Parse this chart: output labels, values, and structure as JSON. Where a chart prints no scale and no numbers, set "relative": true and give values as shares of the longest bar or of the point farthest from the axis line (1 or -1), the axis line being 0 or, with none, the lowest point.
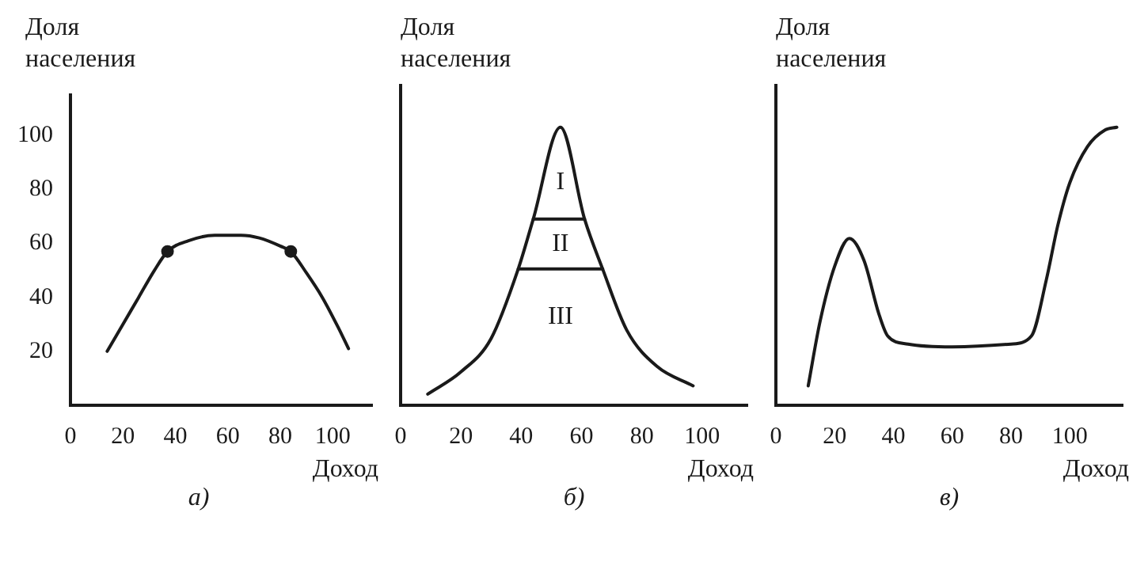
{
  "chart_data": [
    {
      "type": "line",
      "title": "а)",
      "xlabel": "Доход",
      "ylabel": "Доля населения",
      "xlim": [
        0,
        115
      ],
      "ylim": [
        0,
        115
      ],
      "xticks": [
        0,
        20,
        40,
        60,
        80,
        100
      ],
      "yticks": [
        20,
        40,
        60,
        80,
        100
      ],
      "marker": "none",
      "series": [
        {
          "color": "#1a1a1a",
          "x": [
            14,
            20,
            26,
            32,
            37,
            45,
            55,
            65,
            72,
            80,
            84,
            90,
            96,
            102,
            106
          ],
          "values": [
            20,
            30,
            40,
            50,
            57,
            61,
            63,
            63,
            62,
            59,
            57,
            49,
            40,
            29,
            21
          ]
        },
        {
          "type": "scatter",
          "marker": "circle",
          "color": "#1a1a1a",
          "x": [
            37,
            84
          ],
          "values": [
            57,
            57
          ]
        }
      ]
    },
    {
      "type": "line",
      "title": "б)",
      "xlabel": "Доход",
      "ylabel": "Доля населения",
      "relative": true,
      "xlim": [
        0,
        115
      ],
      "xticks": [
        0,
        20,
        40,
        60,
        80,
        100
      ],
      "marker": "none",
      "series": [
        {
          "color": "#1a1a1a",
          "x": [
            9,
            20,
            30,
            39,
            44,
            53,
            61,
            67,
            75,
            85,
            97
          ],
          "values": [
            0.04,
            0.12,
            0.24,
            0.49,
            0.67,
            1,
            0.67,
            0.49,
            0.27,
            0.14,
            0.07
          ]
        },
        {
          "color": "#1a1a1a",
          "x": [
            44,
            61
          ],
          "values": [
            0.67,
            0.67
          ]
        },
        {
          "color": "#1a1a1a",
          "x": [
            39,
            67
          ],
          "values": [
            0.49,
            0.49
          ]
        }
      ],
      "annotations": [
        "I",
        "II",
        "III"
      ]
    },
    {
      "type": "line",
      "title": "в)",
      "xlabel": "Доход",
      "ylabel": "Доля населения",
      "relative": true,
      "xlim": [
        0,
        118
      ],
      "xticks": [
        0,
        20,
        40,
        60,
        80,
        100
      ],
      "marker": "none",
      "series": [
        {
          "color": "#1a1a1a",
          "x": [
            11,
            15,
            20,
            25,
            30,
            35,
            38,
            45,
            60,
            80,
            87,
            92,
            96,
            100,
            106,
            112,
            116
          ],
          "values": [
            0.07,
            0.3,
            0.5,
            0.6,
            0.52,
            0.33,
            0.25,
            0.22,
            0.21,
            0.22,
            0.25,
            0.45,
            0.65,
            0.8,
            0.93,
            0.99,
            1
          ]
        }
      ]
    }
  ]
}
